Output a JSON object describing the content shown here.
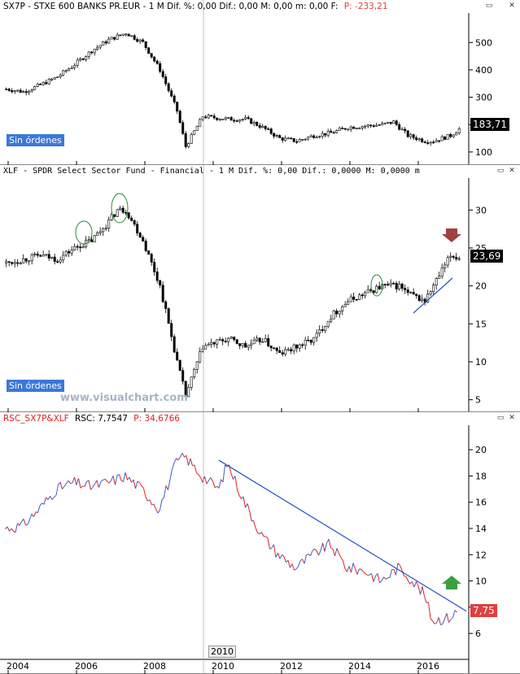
{
  "panel1": {
    "header": "SX7P - STXE 600 BANKS PR.EUR -  1 M  Dif. %: 0,00  Dif.: 0,00  M: 0,00  m: 0,00  F:",
    "header_value": "P: -233,21",
    "price_label": "183,71",
    "order_tag": "Sin órdenes"
  },
  "panel2": {
    "header": "XLF - SPDR Select Sector Fund - Financial -  1 M Dif. %: 0,00 Dif.: 0,0000 M: 0,0000 m",
    "price_label": "23,69",
    "order_tag": "Sin órdenes",
    "watermark": "www.visualchart.com"
  },
  "panel3": {
    "header_name": "RSC_SX7P&XLF",
    "header_rsc": "RSC: 7,7547",
    "header_p": "P: 34,6766",
    "price_label": "7,75"
  },
  "x_axis": {
    "cursor_label": "2010",
    "labels": [
      "2004",
      "2006",
      "2008",
      "2010",
      "2012",
      "2014",
      "2016"
    ]
  },
  "colors": {
    "bull": "#ffffff",
    "bear": "#000000",
    "rsc_up": "#3b5fc9",
    "rsc_down": "#e02020",
    "trendline": "#2050c8",
    "price_red": "#e04040",
    "tag_blue": "#3b78d8",
    "up_arrow": "#3aa040",
    "down_arrow": "#a04040"
  },
  "chart_data": [
    {
      "type": "candlestick",
      "title": "SX7P - STXE 600 BANKS PR.EUR",
      "ylim": [
        70,
        590
      ],
      "yticks": [
        100,
        200,
        300,
        400,
        500
      ],
      "x": [
        "2003-12",
        "2004-06",
        "2004-12",
        "2005-06",
        "2005-12",
        "2006-06",
        "2006-12",
        "2007-06",
        "2007-12",
        "2008-06",
        "2008-12",
        "2009-03",
        "2009-09",
        "2010-06",
        "2010-12",
        "2011-06",
        "2011-12",
        "2012-06",
        "2012-12",
        "2013-06",
        "2013-12",
        "2014-06",
        "2014-12",
        "2015-04",
        "2015-09",
        "2016-03",
        "2016-06",
        "2016-12",
        "2017-03"
      ],
      "close": [
        330,
        320,
        345,
        375,
        420,
        470,
        510,
        535,
        500,
        400,
        250,
        120,
        230,
        220,
        220,
        190,
        150,
        140,
        160,
        170,
        190,
        195,
        200,
        210,
        160,
        140,
        140,
        160,
        184
      ]
    },
    {
      "type": "candlestick",
      "title": "XLF - SPDR Select Sector Fund - Financial",
      "ylim": [
        4,
        34
      ],
      "yticks": [
        5,
        10,
        15,
        20,
        25,
        30
      ],
      "x": [
        "2003-12",
        "2004-06",
        "2004-12",
        "2005-06",
        "2005-12",
        "2006-06",
        "2006-12",
        "2007-03",
        "2007-06",
        "2007-12",
        "2008-06",
        "2008-12",
        "2009-03",
        "2009-09",
        "2010-06",
        "2010-12",
        "2011-06",
        "2011-12",
        "2012-06",
        "2012-12",
        "2013-06",
        "2013-12",
        "2014-06",
        "2014-12",
        "2015-06",
        "2015-09",
        "2016-03",
        "2016-06",
        "2016-12",
        "2017-03"
      ],
      "close": [
        23,
        23.5,
        24,
        23.5,
        25,
        26,
        28.5,
        30,
        30,
        26,
        20,
        10,
        5.5,
        12,
        13,
        12,
        13,
        11,
        12,
        13,
        16,
        18,
        19,
        20,
        20,
        19,
        18,
        20,
        24,
        23.7
      ]
    },
    {
      "type": "line",
      "title": "RSC_SX7P&XLF",
      "ylim": [
        5.2,
        21
      ],
      "yticks": [
        6,
        8,
        10,
        12,
        14,
        16,
        18,
        20
      ],
      "x": [
        "2003-12",
        "2004-06",
        "2004-12",
        "2005-06",
        "2005-12",
        "2006-06",
        "2006-12",
        "2007-06",
        "2007-12",
        "2008-06",
        "2008-12",
        "2009-03",
        "2009-09",
        "2010-03",
        "2010-06",
        "2010-12",
        "2011-06",
        "2011-12",
        "2012-06",
        "2012-12",
        "2013-06",
        "2013-12",
        "2014-06",
        "2014-12",
        "2015-06",
        "2015-09",
        "2016-03",
        "2016-06",
        "2016-12",
        "2017-03"
      ],
      "values": [
        14,
        14.2,
        15.5,
        17,
        17.5,
        17.2,
        17.5,
        18,
        17,
        15.5,
        19,
        19.5,
        18,
        17,
        19,
        16,
        13.5,
        12,
        11,
        12,
        12.8,
        11,
        10.8,
        10,
        11,
        10.5,
        9,
        7,
        7.2,
        7.75
      ],
      "trendline": {
        "x": [
          "2010-03",
          "2017-03"
        ],
        "y": [
          19.2,
          7.7
        ]
      }
    }
  ]
}
